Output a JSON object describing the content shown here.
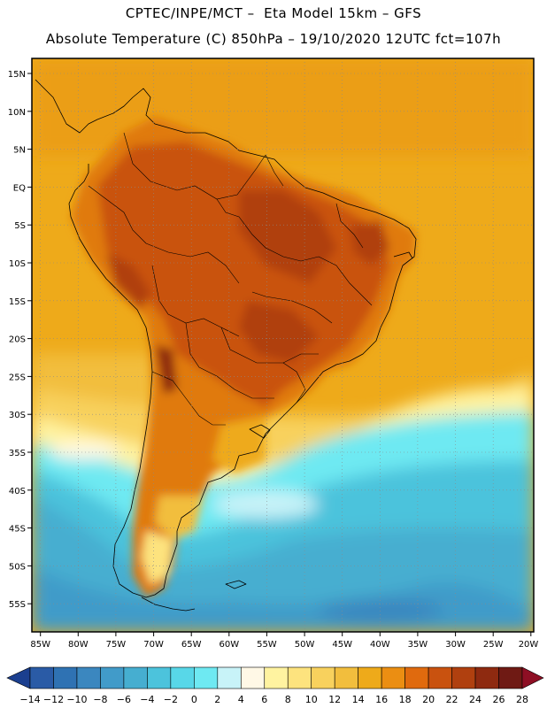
{
  "header": {
    "line1": "CPTEC/INPE/MCT –  Eta Model 15km – GFS",
    "line2": "Absolute Temperature (C) 850hPa – 19/10/2020 12UTC fct=107h"
  },
  "map": {
    "lat_labels": [
      "15N",
      "10N",
      "5N",
      "EQ",
      "5S",
      "10S",
      "15S",
      "20S",
      "25S",
      "30S",
      "35S",
      "40S",
      "45S",
      "50S",
      "55S"
    ],
    "lon_labels": [
      "85W",
      "80W",
      "75W",
      "70W",
      "65W",
      "60W",
      "55W",
      "50W",
      "45W",
      "40W",
      "35W",
      "30W",
      "25W",
      "20W"
    ],
    "lat_range": [
      -57.5,
      16.5
    ],
    "lon_range": [
      -86,
      -19.5
    ],
    "grid": "dotted"
  },
  "colorbar": {
    "labels": [
      "−14",
      "−12",
      "−10",
      "−8",
      "−6",
      "−4",
      "−2",
      "0",
      "2",
      "4",
      "6",
      "8",
      "10",
      "12",
      "14",
      "16",
      "18",
      "20",
      "22",
      "24",
      "26",
      "28"
    ],
    "colors": [
      "#1b3f8f",
      "#2a5ba6",
      "#2f72b3",
      "#3b87bf",
      "#419bc9",
      "#46aed0",
      "#4cc3dc",
      "#58d7e8",
      "#6ee9f2",
      "#c8f3f8",
      "#fff8e6",
      "#fff3a0",
      "#fde37e",
      "#f8d15d",
      "#f2be3d",
      "#eeaa1a",
      "#eb8e12",
      "#e06a0e",
      "#c9520f",
      "#b0400f",
      "#8e2a10",
      "#6f1a14",
      "#6f1a14"
    ]
  }
}
